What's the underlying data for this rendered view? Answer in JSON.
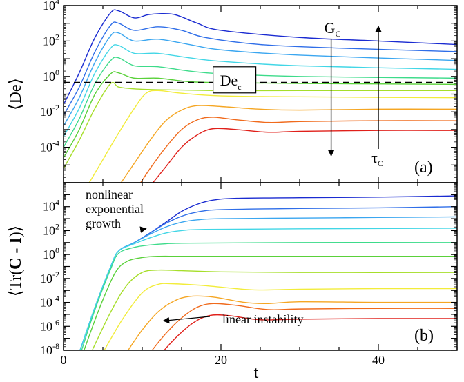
{
  "chart_data": [
    {
      "panel": "a",
      "type": "line",
      "scale_y": "log",
      "xlim": [
        0,
        50
      ],
      "ylim_log10": [
        -6,
        4
      ],
      "ylabel": "⟨De⟩",
      "panel_tag": "(a)",
      "x_ticks": [
        0,
        20,
        40
      ],
      "y_ticks_log10": [
        -4,
        -2,
        0,
        2,
        4
      ],
      "threshold": {
        "label": "De",
        "label_sub": "c",
        "value_log10": -0.35
      },
      "arrow_labels": [
        {
          "text": "G",
          "sub": "C",
          "direction": "down"
        },
        {
          "text": "τ",
          "sub": "C",
          "direction": "up"
        }
      ],
      "series": [
        {
          "color": "#1a2bd1",
          "points_log10": [
            [
              0,
              -1.6
            ],
            [
              2,
              0.2
            ],
            [
              4,
              2.2
            ],
            [
              6,
              3.6
            ],
            [
              7,
              3.7
            ],
            [
              9,
              3.3
            ],
            [
              11,
              3.5
            ],
            [
              14,
              3.5
            ],
            [
              17,
              3.0
            ],
            [
              20,
              2.6
            ],
            [
              30,
              2.2
            ],
            [
              40,
              2.0
            ],
            [
              50,
              1.8
            ]
          ]
        },
        {
          "color": "#2f6ee8",
          "points_log10": [
            [
              0,
              -2.2
            ],
            [
              2,
              -0.6
            ],
            [
              4,
              1.4
            ],
            [
              6,
              2.9
            ],
            [
              7,
              3.0
            ],
            [
              9,
              2.6
            ],
            [
              12,
              2.8
            ],
            [
              15,
              2.6
            ],
            [
              18,
              2.2
            ],
            [
              25,
              1.8
            ],
            [
              35,
              1.6
            ],
            [
              50,
              1.4
            ]
          ]
        },
        {
          "color": "#3aa6f0",
          "points_log10": [
            [
              0,
              -2.8
            ],
            [
              2,
              -1.2
            ],
            [
              4,
              0.8
            ],
            [
              6,
              2.3
            ],
            [
              7,
              2.45
            ],
            [
              9,
              2.0
            ],
            [
              12,
              2.1
            ],
            [
              16,
              1.8
            ],
            [
              20,
              1.5
            ],
            [
              30,
              1.2
            ],
            [
              50,
              0.9
            ]
          ]
        },
        {
          "color": "#41d6e6",
          "points_log10": [
            [
              0,
              -3.4
            ],
            [
              2,
              -1.8
            ],
            [
              4,
              0.2
            ],
            [
              6,
              1.6
            ],
            [
              7,
              1.75
            ],
            [
              9,
              1.3
            ],
            [
              12,
              1.3
            ],
            [
              16,
              1.05
            ],
            [
              20,
              0.85
            ],
            [
              30,
              0.6
            ],
            [
              50,
              0.4
            ]
          ]
        },
        {
          "color": "#3ddb8a",
          "points_log10": [
            [
              0,
              -4.0
            ],
            [
              2,
              -2.4
            ],
            [
              4,
              -0.4
            ],
            [
              6,
              0.9
            ],
            [
              7,
              1.05
            ],
            [
              9,
              0.6
            ],
            [
              12,
              0.55
            ],
            [
              16,
              0.3
            ],
            [
              20,
              0.15
            ],
            [
              30,
              0.0
            ],
            [
              50,
              -0.1
            ]
          ]
        },
        {
          "color": "#5ad13a",
          "points_log10": [
            [
              0,
              -4.6
            ],
            [
              2,
              -3.0
            ],
            [
              4,
              -1.0
            ],
            [
              6,
              0.15
            ],
            [
              7,
              0.2
            ],
            [
              9,
              -0.1
            ],
            [
              12,
              -0.1
            ],
            [
              16,
              -0.3
            ],
            [
              20,
              -0.35
            ],
            [
              30,
              -0.4
            ],
            [
              50,
              -0.45
            ]
          ]
        },
        {
          "color": "#a6de2a",
          "points_log10": [
            [
              0,
              -5.2
            ],
            [
              2,
              -3.6
            ],
            [
              4,
              -1.8
            ],
            [
              6,
              -0.4
            ],
            [
              7,
              -0.6
            ],
            [
              9,
              -0.7
            ],
            [
              12,
              -0.75
            ],
            [
              20,
              -0.8
            ],
            [
              30,
              -0.8
            ],
            [
              50,
              -0.8
            ]
          ]
        },
        {
          "color": "#f2ec3a",
          "points_log10": [
            [
              3,
              -6.2
            ],
            [
              5,
              -4.7
            ],
            [
              7,
              -3.2
            ],
            [
              9,
              -1.8
            ],
            [
              10.5,
              -0.95
            ],
            [
              12,
              -0.8
            ],
            [
              15,
              -0.95
            ],
            [
              20,
              -1.1
            ],
            [
              30,
              -1.15
            ],
            [
              50,
              -1.2
            ]
          ]
        },
        {
          "color": "#f5a623",
          "points_log10": [
            [
              7,
              -6.2
            ],
            [
              9,
              -4.9
            ],
            [
              11,
              -3.6
            ],
            [
              13,
              -2.5
            ],
            [
              15,
              -1.9
            ],
            [
              17,
              -1.65
            ],
            [
              20,
              -1.7
            ],
            [
              25,
              -1.85
            ],
            [
              30,
              -1.9
            ],
            [
              40,
              -1.85
            ],
            [
              50,
              -1.85
            ]
          ]
        },
        {
          "color": "#f06a1c",
          "points_log10": [
            [
              9.5,
              -6.2
            ],
            [
              11,
              -5.2
            ],
            [
              13,
              -4.0
            ],
            [
              15,
              -3.0
            ],
            [
              17,
              -2.45
            ],
            [
              19,
              -2.3
            ],
            [
              22,
              -2.45
            ],
            [
              26,
              -2.6
            ],
            [
              30,
              -2.55
            ],
            [
              40,
              -2.5
            ],
            [
              50,
              -2.5
            ]
          ]
        },
        {
          "color": "#e0201a",
          "points_log10": [
            [
              11,
              -6.2
            ],
            [
              13,
              -5.1
            ],
            [
              15,
              -4.0
            ],
            [
              17,
              -3.3
            ],
            [
              19,
              -2.95
            ],
            [
              22,
              -3.0
            ],
            [
              26,
              -3.15
            ],
            [
              30,
              -3.1
            ],
            [
              40,
              -3.05
            ],
            [
              50,
              -3.05
            ]
          ]
        }
      ]
    },
    {
      "panel": "b",
      "type": "line",
      "scale_y": "log",
      "xlim": [
        0,
        50
      ],
      "ylim_log10": [
        -8,
        6
      ],
      "xlabel": "t",
      "ylabel_parts": [
        "⟨Tr(",
        "C - I",
        ")⟩"
      ],
      "panel_tag": "(b)",
      "x_ticks": [
        0,
        20,
        40
      ],
      "y_ticks_log10": [
        -8,
        -6,
        -4,
        -2,
        0,
        2,
        4
      ],
      "annotations": [
        {
          "lines": [
            "nonlinear",
            "exponential",
            "growth"
          ],
          "target": [
            10.5,
            2.15
          ]
        },
        {
          "lines": [
            "linear instability"
          ],
          "target": [
            12.5,
            -5.6
          ]
        }
      ],
      "series": [
        {
          "color": "#1a2bd1",
          "points_log10": [
            [
              2,
              -8.2
            ],
            [
              4,
              -4.4
            ],
            [
              6,
              -1.0
            ],
            [
              7,
              0.3
            ],
            [
              9,
              1.0
            ],
            [
              11,
              1.8
            ],
            [
              13,
              2.7
            ],
            [
              15,
              3.6
            ],
            [
              17,
              4.2
            ],
            [
              19,
              4.55
            ],
            [
              22,
              4.7
            ],
            [
              30,
              4.75
            ],
            [
              40,
              4.8
            ],
            [
              50,
              4.9
            ]
          ]
        },
        {
          "color": "#2f6ee8",
          "points_log10": [
            [
              2,
              -8.2
            ],
            [
              4,
              -4.4
            ],
            [
              6,
              -1.0
            ],
            [
              7,
              0.3
            ],
            [
              9,
              1.0
            ],
            [
              11,
              1.8
            ],
            [
              13,
              2.6
            ],
            [
              15,
              3.2
            ],
            [
              17,
              3.55
            ],
            [
              20,
              3.75
            ],
            [
              30,
              3.85
            ],
            [
              40,
              3.9
            ],
            [
              50,
              4.0
            ]
          ]
        },
        {
          "color": "#3aa6f0",
          "points_log10": [
            [
              2,
              -8.2
            ],
            [
              4,
              -4.4
            ],
            [
              6,
              -1.0
            ],
            [
              7,
              0.3
            ],
            [
              9,
              1.0
            ],
            [
              11,
              1.7
            ],
            [
              13,
              2.3
            ],
            [
              15,
              2.7
            ],
            [
              17,
              2.9
            ],
            [
              20,
              3.0
            ],
            [
              30,
              3.05
            ],
            [
              40,
              3.1
            ],
            [
              50,
              3.15
            ]
          ]
        },
        {
          "color": "#41d6e6",
          "points_log10": [
            [
              2,
              -8.2
            ],
            [
              4,
              -4.4
            ],
            [
              6,
              -1.0
            ],
            [
              7,
              0.3
            ],
            [
              9,
              0.9
            ],
            [
              11,
              1.4
            ],
            [
              13,
              1.8
            ],
            [
              15,
              2.0
            ],
            [
              18,
              2.1
            ],
            [
              30,
              2.15
            ],
            [
              50,
              2.2
            ]
          ]
        },
        {
          "color": "#3ddb8a",
          "points_log10": [
            [
              2.2,
              -8.2
            ],
            [
              4,
              -4.6
            ],
            [
              6,
              -1.2
            ],
            [
              7,
              0.1
            ],
            [
              9,
              0.6
            ],
            [
              11,
              0.8
            ],
            [
              13,
              0.9
            ],
            [
              16,
              0.95
            ],
            [
              30,
              1.0
            ],
            [
              50,
              1.0
            ]
          ]
        },
        {
          "color": "#5ad13a",
          "points_log10": [
            [
              2.5,
              -8.2
            ],
            [
              4.5,
              -4.6
            ],
            [
              6.5,
              -1.6
            ],
            [
              8,
              -0.6
            ],
            [
              10,
              -0.25
            ],
            [
              12,
              -0.15
            ],
            [
              16,
              -0.15
            ],
            [
              30,
              -0.15
            ],
            [
              50,
              -0.15
            ]
          ]
        },
        {
          "color": "#a6de2a",
          "points_log10": [
            [
              3.5,
              -8.2
            ],
            [
              6,
              -4.8
            ],
            [
              8,
              -2.6
            ],
            [
              10,
              -1.5
            ],
            [
              12,
              -1.3
            ],
            [
              15,
              -1.35
            ],
            [
              20,
              -1.45
            ],
            [
              30,
              -1.5
            ],
            [
              50,
              -1.5
            ]
          ]
        },
        {
          "color": "#f2ec3a",
          "points_log10": [
            [
              5,
              -8.2
            ],
            [
              7.5,
              -5.4
            ],
            [
              10,
              -3.2
            ],
            [
              12,
              -2.5
            ],
            [
              14,
              -2.45
            ],
            [
              18,
              -2.6
            ],
            [
              24,
              -2.95
            ],
            [
              30,
              -2.9
            ],
            [
              40,
              -2.85
            ],
            [
              50,
              -2.85
            ]
          ]
        },
        {
          "color": "#f5a623",
          "points_log10": [
            [
              8,
              -8.2
            ],
            [
              10,
              -6.3
            ],
            [
              12,
              -4.8
            ],
            [
              14,
              -3.9
            ],
            [
              16,
              -3.5
            ],
            [
              19,
              -3.55
            ],
            [
              23,
              -4.0
            ],
            [
              26,
              -4.1
            ],
            [
              30,
              -3.95
            ],
            [
              40,
              -4.0
            ],
            [
              50,
              -4.0
            ]
          ]
        },
        {
          "color": "#f06a1c",
          "points_log10": [
            [
              11,
              -8.2
            ],
            [
              13,
              -6.6
            ],
            [
              15,
              -5.3
            ],
            [
              17,
              -4.4
            ],
            [
              19,
              -4.1
            ],
            [
              22,
              -4.25
            ],
            [
              26,
              -4.6
            ],
            [
              30,
              -4.55
            ],
            [
              40,
              -4.5
            ],
            [
              50,
              -4.5
            ]
          ]
        },
        {
          "color": "#e0201a",
          "points_log10": [
            [
              12.5,
              -8.2
            ],
            [
              14.5,
              -6.8
            ],
            [
              16.5,
              -5.7
            ],
            [
              18.5,
              -5.1
            ],
            [
              21,
              -5.1
            ],
            [
              25,
              -5.45
            ],
            [
              30,
              -5.4
            ],
            [
              40,
              -5.35
            ],
            [
              50,
              -5.35
            ]
          ]
        }
      ]
    }
  ]
}
